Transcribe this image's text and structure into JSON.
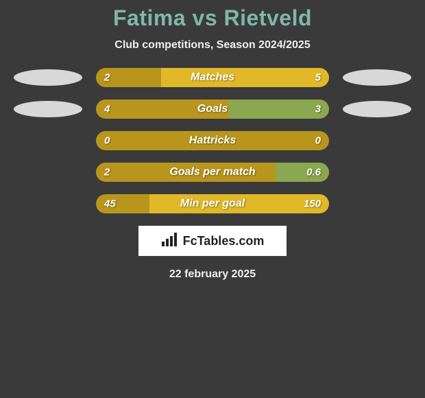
{
  "title": "Fatima vs Rietveld",
  "subtitle": "Club competitions, Season 2024/2025",
  "date": "22 february 2025",
  "brand": "FcTables.com",
  "colors": {
    "background": "#3a3a3a",
    "title_color": "#7fb8a8",
    "bar_left": "#b8961e",
    "bar_right_yellow": "#e0b828",
    "bar_right_green": "#8aa850",
    "ellipse": "#d8d8d8",
    "text_white": "#f0f0f0"
  },
  "rows": [
    {
      "label": "Matches",
      "left_val": "2",
      "right_val": "5",
      "left_pct": 28,
      "right_pct": 72,
      "right_color": "#e0b828",
      "show_left_ellipse": true,
      "show_right_ellipse": true
    },
    {
      "label": "Goals",
      "left_val": "4",
      "right_val": "3",
      "left_pct": 57,
      "right_pct": 43,
      "right_color": "#8aa850",
      "show_left_ellipse": true,
      "show_right_ellipse": true
    },
    {
      "label": "Hattricks",
      "left_val": "0",
      "right_val": "0",
      "left_pct": 100,
      "right_pct": 0,
      "right_color": "#e0b828",
      "show_left_ellipse": false,
      "show_right_ellipse": false
    },
    {
      "label": "Goals per match",
      "left_val": "2",
      "right_val": "0.6",
      "left_pct": 77,
      "right_pct": 23,
      "right_color": "#8aa850",
      "show_left_ellipse": false,
      "show_right_ellipse": false
    },
    {
      "label": "Min per goal",
      "left_val": "45",
      "right_val": "150",
      "left_pct": 23,
      "right_pct": 77,
      "right_color": "#e0b828",
      "show_left_ellipse": false,
      "show_right_ellipse": false
    }
  ]
}
